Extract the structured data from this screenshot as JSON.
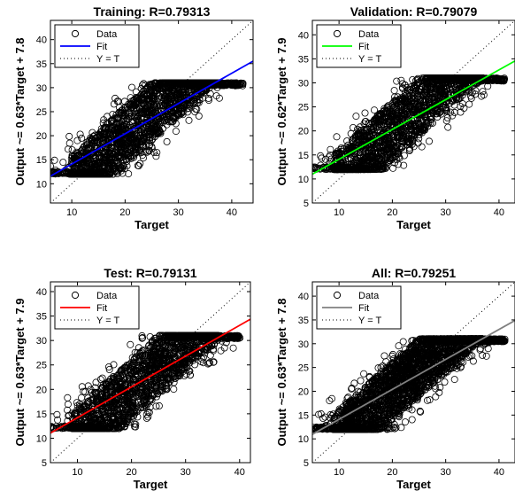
{
  "chart_data": [
    {
      "type": "scatter",
      "title": "Training: R=0.79313",
      "xlabel": "Target",
      "ylabel": "Output ~= 0.63*Target + 7.8",
      "xlim": [
        6,
        44
      ],
      "ylim": [
        6,
        44
      ],
      "xticks": [
        10,
        20,
        30,
        40
      ],
      "yticks": [
        10,
        15,
        20,
        25,
        30,
        35,
        40
      ],
      "grid": false,
      "legend_position": "top-left",
      "series": [
        {
          "name": "Data",
          "kind": "circles",
          "color": "#000000",
          "x_range": [
            6,
            44
          ],
          "y_range": [
            12,
            31
          ]
        },
        {
          "name": "Fit",
          "kind": "line",
          "color": "#0000ff",
          "slope": 0.63,
          "intercept": 7.8
        },
        {
          "name": "Y = T",
          "kind": "dotted",
          "color": "#000000",
          "slope": 1,
          "intercept": 0
        }
      ]
    },
    {
      "type": "scatter",
      "title": "Validation: R=0.79079",
      "xlabel": "Target",
      "ylabel": "Output ~= 0.62*Target + 7.9",
      "xlim": [
        5,
        43
      ],
      "ylim": [
        5,
        43
      ],
      "xticks": [
        10,
        20,
        30,
        40
      ],
      "yticks": [
        5,
        10,
        15,
        20,
        25,
        30,
        35,
        40
      ],
      "grid": false,
      "legend_position": "top-left",
      "series": [
        {
          "name": "Data",
          "kind": "circles",
          "color": "#000000",
          "x_range": [
            5,
            43
          ],
          "y_range": [
            12,
            31
          ]
        },
        {
          "name": "Fit",
          "kind": "line",
          "color": "#00ff00",
          "slope": 0.62,
          "intercept": 7.9
        },
        {
          "name": "Y = T",
          "kind": "dotted",
          "color": "#000000",
          "slope": 1,
          "intercept": 0
        }
      ]
    },
    {
      "type": "scatter",
      "title": "Test: R=0.79131",
      "xlabel": "Target",
      "ylabel": "Output ~= 0.63*Target + 7.9",
      "xlim": [
        5,
        42
      ],
      "ylim": [
        5,
        42
      ],
      "xticks": [
        10,
        20,
        30,
        40
      ],
      "yticks": [
        5,
        10,
        15,
        20,
        25,
        30,
        35,
        40
      ],
      "grid": false,
      "legend_position": "top-left",
      "series": [
        {
          "name": "Data",
          "kind": "circles",
          "color": "#000000",
          "x_range": [
            5,
            42
          ],
          "y_range": [
            12,
            31
          ]
        },
        {
          "name": "Fit",
          "kind": "line",
          "color": "#ff0000",
          "slope": 0.63,
          "intercept": 7.9
        },
        {
          "name": "Y = T",
          "kind": "dotted",
          "color": "#000000",
          "slope": 1,
          "intercept": 0
        }
      ]
    },
    {
      "type": "scatter",
      "title": "All: R=0.79251",
      "xlabel": "Target",
      "ylabel": "Output ~= 0.63*Target + 7.8",
      "xlim": [
        5,
        43
      ],
      "ylim": [
        5,
        43
      ],
      "xticks": [
        10,
        20,
        30,
        40
      ],
      "yticks": [
        5,
        10,
        15,
        20,
        25,
        30,
        35,
        40
      ],
      "grid": false,
      "legend_position": "top-left",
      "series": [
        {
          "name": "Data",
          "kind": "circles",
          "color": "#000000",
          "x_range": [
            5,
            43
          ],
          "y_range": [
            12,
            31
          ]
        },
        {
          "name": "Fit",
          "kind": "line",
          "color": "#808080",
          "slope": 0.63,
          "intercept": 7.8
        },
        {
          "name": "Y = T",
          "kind": "dotted",
          "color": "#000000",
          "slope": 1,
          "intercept": 0
        }
      ]
    }
  ]
}
